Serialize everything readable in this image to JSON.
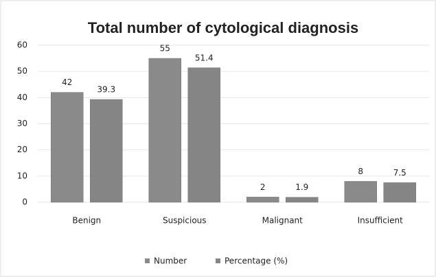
{
  "chart_data": {
    "type": "bar",
    "title": "Total number of cytological diagnosis",
    "categories": [
      "Benign",
      "Suspicious",
      "Malignant",
      "Insufficient"
    ],
    "series": [
      {
        "name": "Number",
        "color": "#8a8a8a",
        "values": [
          42,
          55,
          2,
          8
        ]
      },
      {
        "name": "Percentage (%)",
        "color": "#858585",
        "values": [
          39.3,
          51.4,
          1.9,
          7.5
        ]
      }
    ],
    "ylim": [
      0,
      60
    ],
    "yticks": [
      0,
      10,
      20,
      30,
      40,
      50,
      60
    ],
    "grid": true,
    "legend": "bottom"
  }
}
